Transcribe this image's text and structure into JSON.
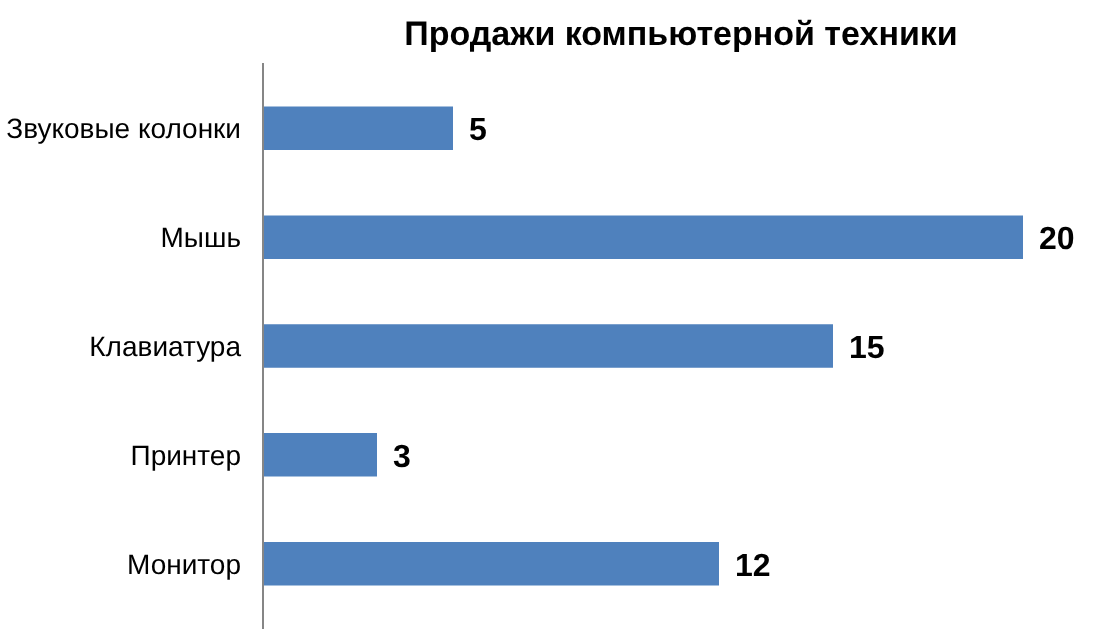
{
  "chart_data": {
    "type": "bar",
    "orientation": "horizontal",
    "title": "Продажи компьютерной техники",
    "categories": [
      "Звуковые колонки",
      "Мышь",
      "Клавиатура",
      "Принтер",
      "Монитор"
    ],
    "values": [
      5,
      20,
      15,
      3,
      12
    ],
    "color": "#4f81bd",
    "data_labels": true,
    "grid": false
  }
}
